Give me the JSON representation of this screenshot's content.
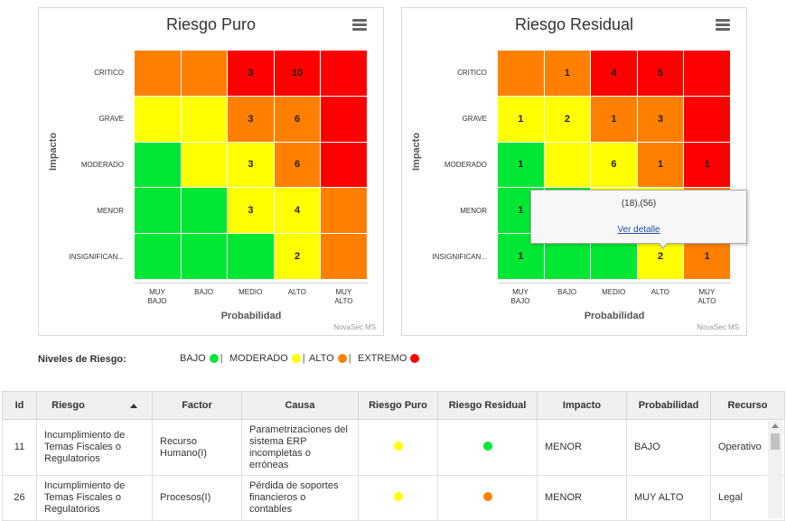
{
  "colors": {
    "green": "#00e833",
    "yellow": "#ffff00",
    "orange": "#ff8000",
    "red": "#ff0000",
    "purple_link": "#1f4ea6"
  },
  "row_labels": [
    "CRITICO",
    "GRAVE",
    "MODERADO",
    "MENOR",
    "INSIGNIFICAN..."
  ],
  "col_labels": [
    [
      "MUY",
      "BAJO"
    ],
    [
      "BAJO",
      ""
    ],
    [
      "MEDIO",
      ""
    ],
    [
      "ALTO",
      ""
    ],
    [
      "MUY",
      "ALTO"
    ]
  ],
  "xlabel": "Probabilidad",
  "ylabel": "Impacto",
  "credit": "NovaSec MS",
  "matrix_colors": [
    [
      "orange",
      "orange",
      "red",
      "red",
      "red"
    ],
    [
      "yellow",
      "yellow",
      "orange",
      "orange",
      "red"
    ],
    [
      "green",
      "yellow",
      "yellow",
      "orange",
      "red"
    ],
    [
      "green",
      "green",
      "yellow",
      "yellow",
      "orange"
    ],
    [
      "green",
      "green",
      "green",
      "yellow",
      "orange"
    ]
  ],
  "chart_data": [
    {
      "type": "heatmap",
      "title": "Riesgo Puro",
      "xlabel": "Probabilidad",
      "ylabel": "Impacto",
      "values": [
        [
          "",
          "",
          "3",
          "10",
          ""
        ],
        [
          "",
          "",
          "3",
          "6",
          ""
        ],
        [
          "",
          "",
          "3",
          "6",
          ""
        ],
        [
          "",
          "",
          "3",
          "4",
          ""
        ],
        [
          "",
          "",
          "",
          "2",
          ""
        ]
      ]
    },
    {
      "type": "heatmap",
      "title": "Riesgo Residual",
      "xlabel": "Probabilidad",
      "ylabel": "Impacto",
      "values": [
        [
          "",
          "1",
          "4",
          "5",
          ""
        ],
        [
          "1",
          "2",
          "1",
          "3",
          ""
        ],
        [
          "1",
          "",
          "6",
          "1",
          "1"
        ],
        [
          "1",
          "",
          "",
          "",
          ""
        ],
        [
          "1",
          "",
          "",
          "2",
          "1"
        ]
      ]
    }
  ],
  "tooltip": {
    "text": "(18),(56)",
    "link": "Ver detalle"
  },
  "legend": {
    "title": "Niveles de Riesgo:",
    "items": [
      {
        "label": "BAJO",
        "color": "#00e833"
      },
      {
        "label": "MODERADO",
        "color": "#ffff00"
      },
      {
        "label": "ALTO",
        "color": "#ff8000"
      },
      {
        "label": "EXTREMO",
        "color": "#ff0000"
      }
    ]
  },
  "table": {
    "headers": [
      "Id",
      "Riesgo",
      "Factor",
      "Causa",
      "Riesgo Puro",
      "Riesgo Residual",
      "Impacto",
      "Probabilidad",
      "Recurso"
    ],
    "rows": [
      {
        "id": "11",
        "riesgo": "Incumplimiento de Temas Fiscales o Regulatorios",
        "factor": "Recurso Humano(I)",
        "causa": "Parametrizaciones del sistema ERP incompletas o erróneas",
        "puro": "#ffff00",
        "residual": "#00e833",
        "impacto": "MENOR",
        "probabilidad": "BAJO",
        "recurso": "Operativo"
      },
      {
        "id": "26",
        "riesgo": "Incumplimiento de Temas Fiscales o Regulatorios",
        "factor": "Procesos(I)",
        "causa": "Pérdida de soportes financieros o contables",
        "puro": "#ffff00",
        "residual": "#ff8000",
        "impacto": "MENOR",
        "probabilidad": "MUY ALTO",
        "recurso": "Legal"
      }
    ]
  }
}
